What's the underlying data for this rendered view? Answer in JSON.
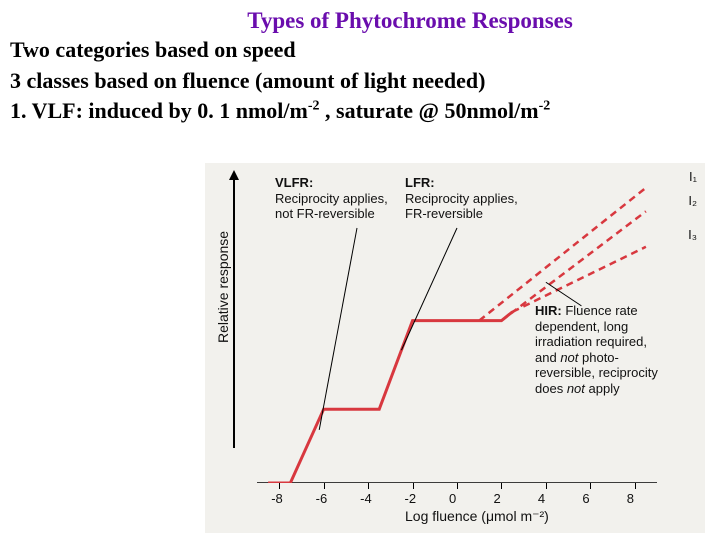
{
  "title": "Types of Phytochrome Responses",
  "line1": "Two categories based on speed",
  "line2": "3 classes based on fluence (amount of light needed)",
  "line3_prefix": "1.   VLF: induced by 0. 1 nmol/m",
  "line3_sup1": "-2",
  "line3_mid": " , saturate @  50nmol/m",
  "line3_sup2": "-2",
  "chart": {
    "ylabel": "Relative response",
    "xlabel": "Log fluence (μmol m⁻²)",
    "xticks": [
      -8,
      -6,
      -4,
      -2,
      0,
      2,
      4,
      6,
      8
    ],
    "line_color": "#d8383f",
    "line_width": 3,
    "dashed_color": "#d8383f",
    "background": "#f2f1ed",
    "solid_points": [
      [
        -8.5,
        0
      ],
      [
        -7.5,
        0
      ],
      [
        -6,
        25
      ],
      [
        -5,
        25
      ],
      [
        -3.5,
        25
      ],
      [
        -2,
        55
      ],
      [
        -1,
        55
      ],
      [
        1,
        55
      ],
      [
        2,
        55
      ],
      [
        2.5,
        58
      ]
    ],
    "dashed_lines": [
      [
        [
          1,
          55
        ],
        [
          8.5,
          100
        ]
      ],
      [
        [
          2,
          55
        ],
        [
          8.5,
          92
        ]
      ],
      [
        [
          2.5,
          58
        ],
        [
          8.5,
          80
        ]
      ]
    ],
    "end_labels": [
      "I₁",
      "I₂",
      "I₃"
    ],
    "annotations": {
      "vlfr_head": "VLFR:",
      "vlfr_body": "Reciprocity applies,\nnot FR-reversible",
      "lfr_head": "LFR:",
      "lfr_body": "Reciprocity applies,\nFR-reversible",
      "hir": "HIR: Fluence rate\ndependent, long\nirradiation required,\nand not photo-\nreversible, reciprocity\ndoes not apply"
    },
    "yrange": [
      0,
      100
    ]
  }
}
